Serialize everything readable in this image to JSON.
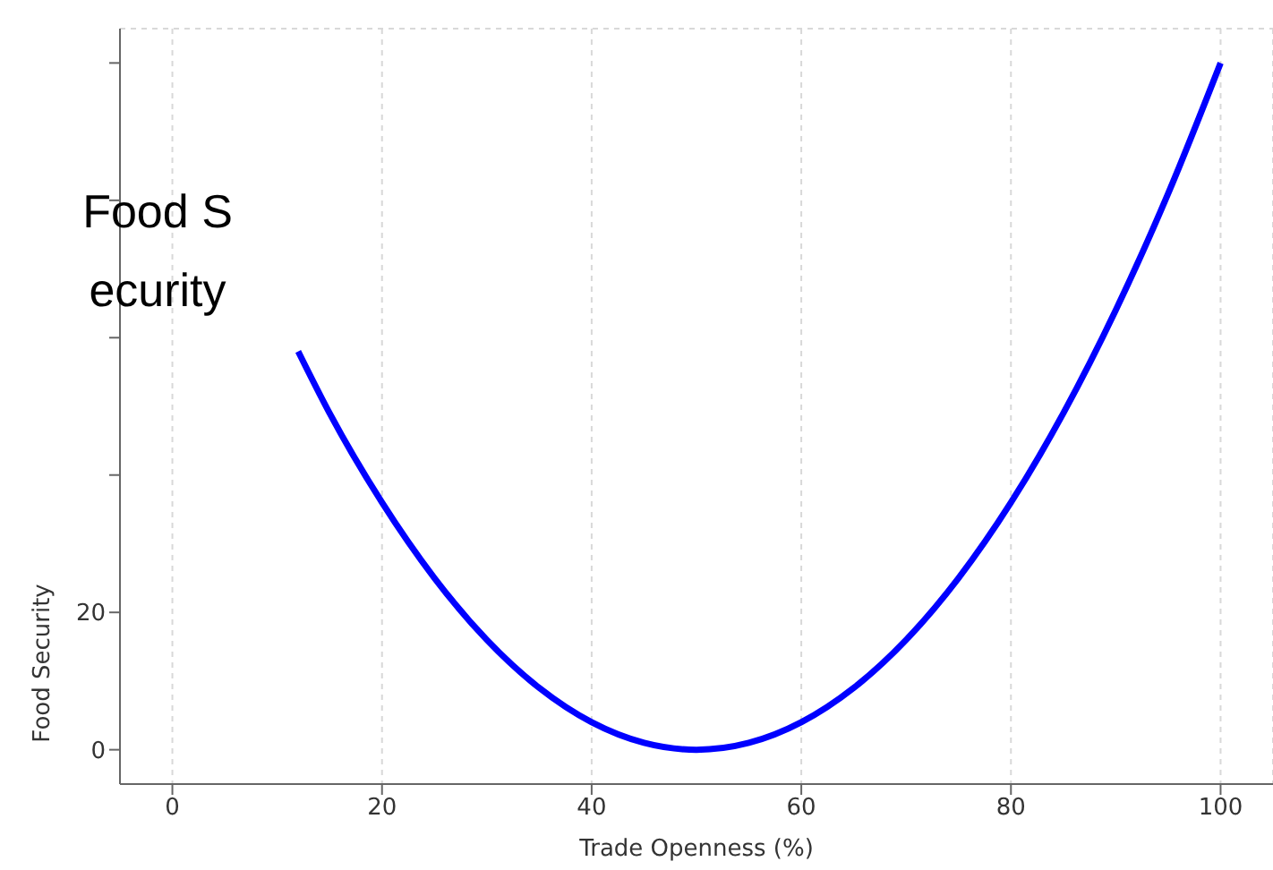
{
  "chart_data": {
    "type": "line",
    "xlabel": "Trade Openness (%)",
    "ylabel": "Food Security",
    "annotations": [
      "Food Security"
    ],
    "x": [
      12,
      15,
      20,
      25,
      30,
      35,
      40,
      45,
      50,
      55,
      60,
      65,
      70,
      75,
      80,
      85,
      90,
      95,
      100
    ],
    "series": [
      {
        "color": "#0000ff",
        "values": [
          58,
          49,
          36,
          25,
          16,
          9,
          4,
          1,
          0,
          1,
          4,
          9,
          16,
          25,
          36,
          49,
          64,
          81,
          100
        ]
      }
    ],
    "xlim": [
      -5,
      105
    ],
    "xticks": [
      0,
      20,
      40,
      60,
      80,
      100
    ],
    "ylim": [
      -5,
      105
    ],
    "yticks": [
      0,
      20,
      {
        "value": 40,
        "label": null
      },
      {
        "value": 60,
        "label": null
      },
      {
        "value": 80,
        "label": null
      },
      {
        "value": 100,
        "label": null
      }
    ],
    "grid": true,
    "marker": "none",
    "line_style": "solid",
    "legend": false
  }
}
